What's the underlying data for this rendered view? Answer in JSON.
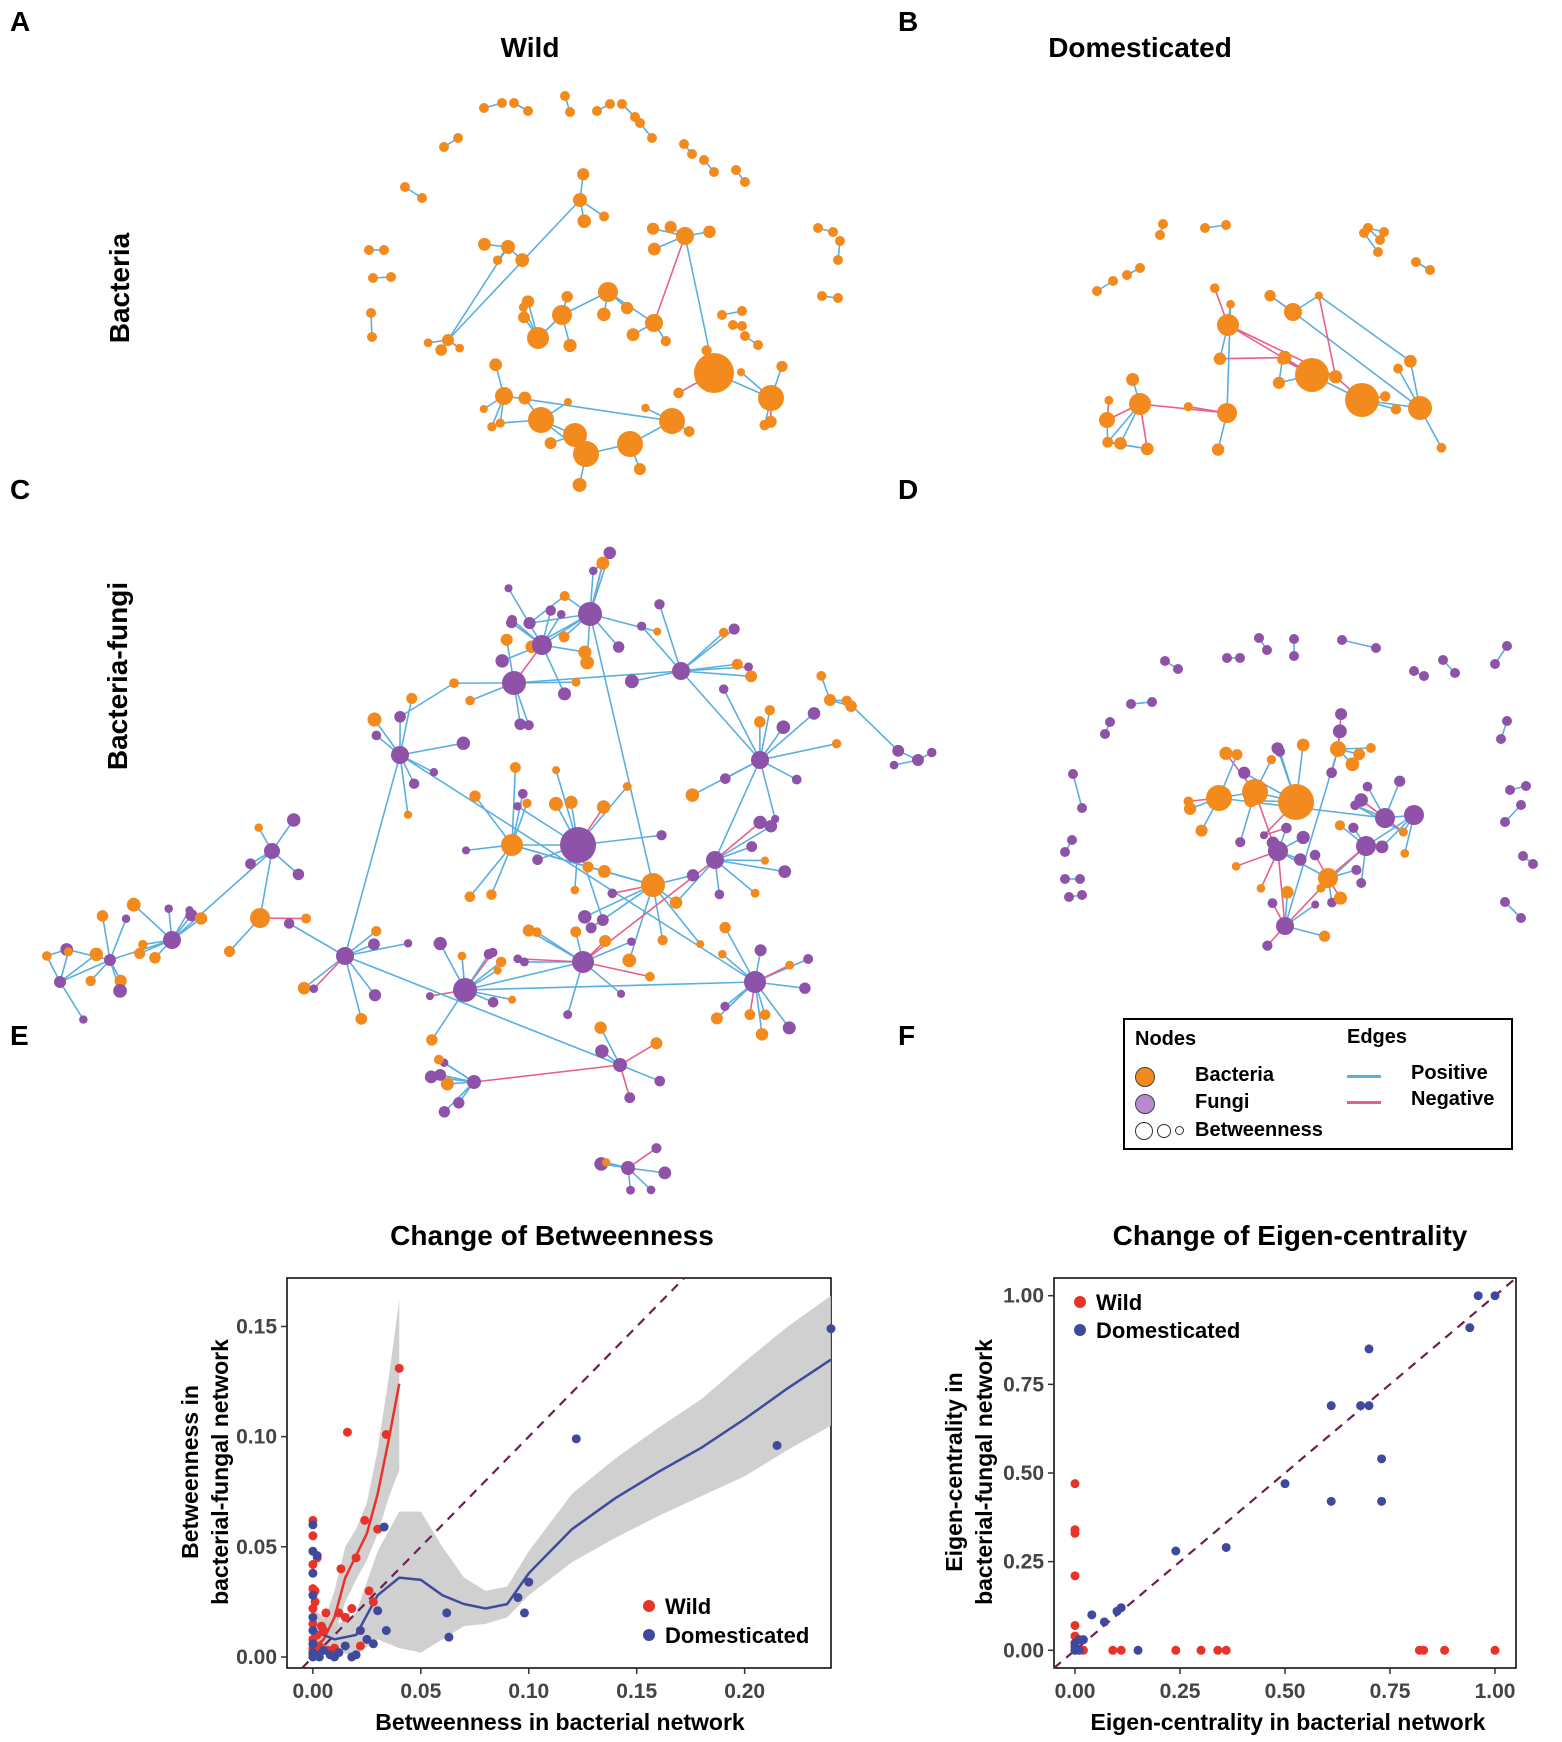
{
  "panels": {
    "a": "A",
    "b": "B",
    "c": "C",
    "d": "D",
    "e": "E",
    "f": "F"
  },
  "columns": {
    "wild": "Wild",
    "domesticated": "Domesticated"
  },
  "rows": {
    "bacteria": "Bacteria",
    "bacteria_fungi": "Bacteria-fungi"
  },
  "legend": {
    "nodes_header": "Nodes",
    "edges_header": "Edges",
    "bacteria": "Bacteria",
    "fungi": "Fungi",
    "betweenness": "Betweenness",
    "positive": "Positive",
    "negative": "Negative"
  },
  "colors": {
    "bacteria": "#f28a1e",
    "fungi": "#8e52a8",
    "positive_edge": "#5aafe0",
    "negative_edge": "#e8608a",
    "wild": "#e8332a",
    "domesticated": "#3f4a9c",
    "diagonal": "#6e1f52",
    "ribbon": "#c8c8c8"
  },
  "chart_data": [
    {
      "type": "scatter",
      "title": "Change of Betweenness",
      "xlabel": "Betweenness in bacterial network",
      "ylabel_line1": "Betweenness in",
      "ylabel_line2": "bacterial-fungal network",
      "xlim": [
        -0.012,
        0.24
      ],
      "ylim": [
        -0.005,
        0.172
      ],
      "xticks": [
        0.0,
        0.05,
        0.1,
        0.15,
        0.2
      ],
      "xtick_labels": [
        "0.00",
        "0.05",
        "0.10",
        "0.15",
        "0.20"
      ],
      "yticks": [
        0.0,
        0.05,
        0.1,
        0.15
      ],
      "ytick_labels": [
        "0.00",
        "0.05",
        "0.10",
        "0.15"
      ],
      "legend": [
        "Wild",
        "Domesticated"
      ],
      "series": [
        {
          "name": "Wild",
          "points": [
            [
              0,
              0.062
            ],
            [
              0,
              0.055
            ],
            [
              0,
              0.042
            ],
            [
              0,
              0.031
            ],
            [
              0,
              0.022
            ],
            [
              0,
              0.015
            ],
            [
              0,
              0.008
            ],
            [
              0,
              0.004
            ],
            [
              0,
              0.001
            ],
            [
              0.001,
              0.03
            ],
            [
              0.002,
              0.01
            ],
            [
              0.003,
              0.005
            ],
            [
              0.005,
              0.012
            ],
            [
              0.006,
              0.02
            ],
            [
              0.004,
              0.014
            ],
            [
              0.007,
              0.003
            ],
            [
              0.008,
              0.001
            ],
            [
              0.01,
              0.004
            ],
            [
              0.012,
              0.02
            ],
            [
              0.013,
              0.04
            ],
            [
              0.015,
              0.018
            ],
            [
              0.016,
              0.102
            ],
            [
              0.018,
              0.022
            ],
            [
              0.02,
              0.045
            ],
            [
              0.022,
              0.005
            ],
            [
              0.024,
              0.062
            ],
            [
              0.026,
              0.03
            ],
            [
              0.028,
              0.025
            ],
            [
              0.03,
              0.058
            ],
            [
              0.034,
              0.101
            ],
            [
              0.04,
              0.131
            ],
            [
              0.002,
              0.045
            ],
            [
              0.001,
              0.025
            ]
          ]
        },
        {
          "name": "Domesticated",
          "points": [
            [
              0,
              0.06
            ],
            [
              0,
              0.048
            ],
            [
              0,
              0.038
            ],
            [
              0,
              0.028
            ],
            [
              0,
              0.018
            ],
            [
              0,
              0.012
            ],
            [
              0,
              0.006
            ],
            [
              0,
              0.002
            ],
            [
              0,
              0.0
            ],
            [
              0.002,
              0.046
            ],
            [
              0.003,
              0.0
            ],
            [
              0.005,
              0.003
            ],
            [
              0.008,
              0.001
            ],
            [
              0.01,
              0.0
            ],
            [
              0.012,
              0.002
            ],
            [
              0.015,
              0.005
            ],
            [
              0.018,
              0.0
            ],
            [
              0.02,
              0.001
            ],
            [
              0.022,
              0.012
            ],
            [
              0.025,
              0.008
            ],
            [
              0.028,
              0.006
            ],
            [
              0.03,
              0.021
            ],
            [
              0.033,
              0.059
            ],
            [
              0.034,
              0.012
            ],
            [
              0.062,
              0.02
            ],
            [
              0.063,
              0.009
            ],
            [
              0.095,
              0.027
            ],
            [
              0.098,
              0.02
            ],
            [
              0.1,
              0.034
            ],
            [
              0.122,
              0.099
            ],
            [
              0.215,
              0.096
            ],
            [
              0.24,
              0.149
            ]
          ]
        }
      ],
      "fits": [
        {
          "name": "Wild",
          "x": [
            0,
            0.005,
            0.01,
            0.015,
            0.02,
            0.025,
            0.03,
            0.035,
            0.04
          ],
          "y": [
            0.004,
            0.008,
            0.018,
            0.036,
            0.046,
            0.056,
            0.074,
            0.098,
            0.124
          ],
          "lo": [
            0.0,
            0.002,
            0.01,
            0.025,
            0.035,
            0.044,
            0.056,
            0.072,
            0.085
          ],
          "hi": [
            0.01,
            0.016,
            0.03,
            0.05,
            0.058,
            0.07,
            0.094,
            0.126,
            0.162
          ]
        },
        {
          "name": "Domesticated",
          "x": [
            0,
            0.01,
            0.02,
            0.03,
            0.04,
            0.05,
            0.06,
            0.07,
            0.08,
            0.09,
            0.1,
            0.12,
            0.14,
            0.16,
            0.18,
            0.2,
            0.22,
            0.24
          ],
          "y": [
            0.012,
            0.008,
            0.01,
            0.028,
            0.036,
            0.035,
            0.028,
            0.024,
            0.022,
            0.024,
            0.038,
            0.058,
            0.072,
            0.084,
            0.095,
            0.108,
            0.122,
            0.135
          ],
          "lo": [
            0.002,
            0.002,
            0.001,
            0.008,
            0.004,
            0.002,
            0.008,
            0.014,
            0.015,
            0.018,
            0.028,
            0.043,
            0.054,
            0.064,
            0.073,
            0.082,
            0.094,
            0.105
          ],
          "hi": [
            0.022,
            0.014,
            0.02,
            0.048,
            0.066,
            0.066,
            0.05,
            0.036,
            0.03,
            0.032,
            0.048,
            0.074,
            0.09,
            0.104,
            0.117,
            0.134,
            0.15,
            0.164
          ]
        }
      ],
      "diagonal": "y = x"
    },
    {
      "type": "scatter",
      "title": "Change of Eigen-centrality",
      "xlabel": "Eigen-centrality in bacterial network",
      "ylabel_line1": "Eigen-centrality in",
      "ylabel_line2": "bacterial-fungal network",
      "xlim": [
        -0.05,
        1.05
      ],
      "ylim": [
        -0.05,
        1.05
      ],
      "xticks": [
        0.0,
        0.25,
        0.5,
        0.75,
        1.0
      ],
      "xtick_labels": [
        "0.00",
        "0.25",
        "0.50",
        "0.75",
        "1.00"
      ],
      "yticks": [
        0.0,
        0.25,
        0.5,
        0.75,
        1.0
      ],
      "ytick_labels": [
        "0.00",
        "0.25",
        "0.50",
        "0.75",
        "1.00"
      ],
      "legend": [
        "Wild",
        "Domesticated"
      ],
      "series": [
        {
          "name": "Wild",
          "points": [
            [
              0,
              0.47
            ],
            [
              0,
              0.34
            ],
            [
              0,
              0.33
            ],
            [
              0,
              0.21
            ],
            [
              0,
              0.07
            ],
            [
              0,
              0.04
            ],
            [
              0,
              0.02
            ],
            [
              0,
              0.0
            ],
            [
              0.02,
              0.0
            ],
            [
              0.09,
              0.0
            ],
            [
              0.11,
              0.0
            ],
            [
              0.24,
              0.0
            ],
            [
              0.3,
              0.0
            ],
            [
              0.34,
              0.0
            ],
            [
              0.36,
              0.0
            ],
            [
              0.82,
              0.0
            ],
            [
              0.83,
              0.0
            ],
            [
              0.88,
              0.0
            ],
            [
              1.0,
              0.0
            ]
          ]
        },
        {
          "name": "Domesticated",
          "points": [
            [
              0,
              0.0
            ],
            [
              0,
              0.01
            ],
            [
              0,
              0.02
            ],
            [
              0.01,
              0.03
            ],
            [
              0.01,
              0.0
            ],
            [
              0.02,
              0.03
            ],
            [
              0.04,
              0.1
            ],
            [
              0.07,
              0.08
            ],
            [
              0.1,
              0.11
            ],
            [
              0.11,
              0.12
            ],
            [
              0.15,
              0.0
            ],
            [
              0.24,
              0.28
            ],
            [
              0.36,
              0.29
            ],
            [
              0.5,
              0.47
            ],
            [
              0.61,
              0.69
            ],
            [
              0.61,
              0.42
            ],
            [
              0.68,
              0.69
            ],
            [
              0.7,
              0.85
            ],
            [
              0.7,
              0.69
            ],
            [
              0.73,
              0.54
            ],
            [
              0.73,
              0.42
            ],
            [
              0.94,
              0.91
            ],
            [
              0.96,
              1.0
            ],
            [
              1.0,
              1.0
            ]
          ]
        }
      ],
      "diagonal": "y = x"
    }
  ]
}
